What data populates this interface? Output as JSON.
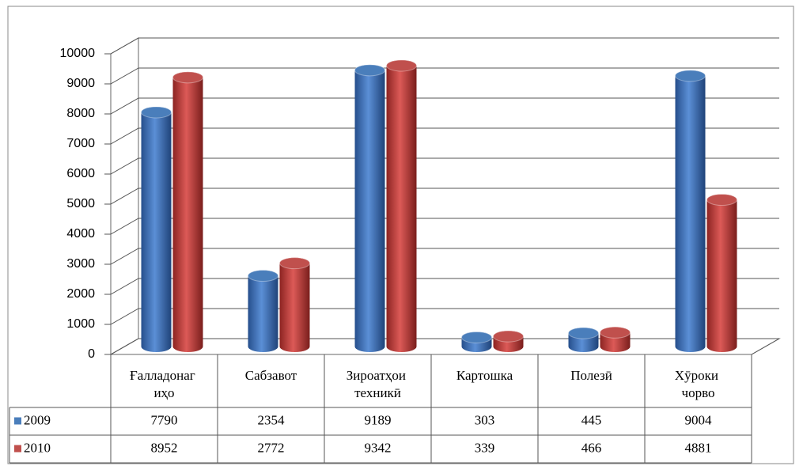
{
  "chart_data": {
    "type": "bar3d",
    "categories": [
      "Ғалладонаг иҳо",
      "Сабзавот",
      "Зироатҳои техникӣ",
      "Картошка",
      "Полезӣ",
      "Хӯроки чорво"
    ],
    "series": [
      {
        "name": "2009",
        "color": "#4a7ebb",
        "values": [
          7790,
          2354,
          9189,
          303,
          445,
          9004
        ]
      },
      {
        "name": "2010",
        "color": "#c0504d",
        "values": [
          8952,
          2772,
          9342,
          339,
          466,
          4881
        ]
      }
    ],
    "ylim": [
      0,
      10000
    ],
    "yticks": [
      0,
      1000,
      2000,
      3000,
      4000,
      5000,
      6000,
      7000,
      8000,
      9000,
      10000
    ],
    "grid": true,
    "data_table": true
  }
}
